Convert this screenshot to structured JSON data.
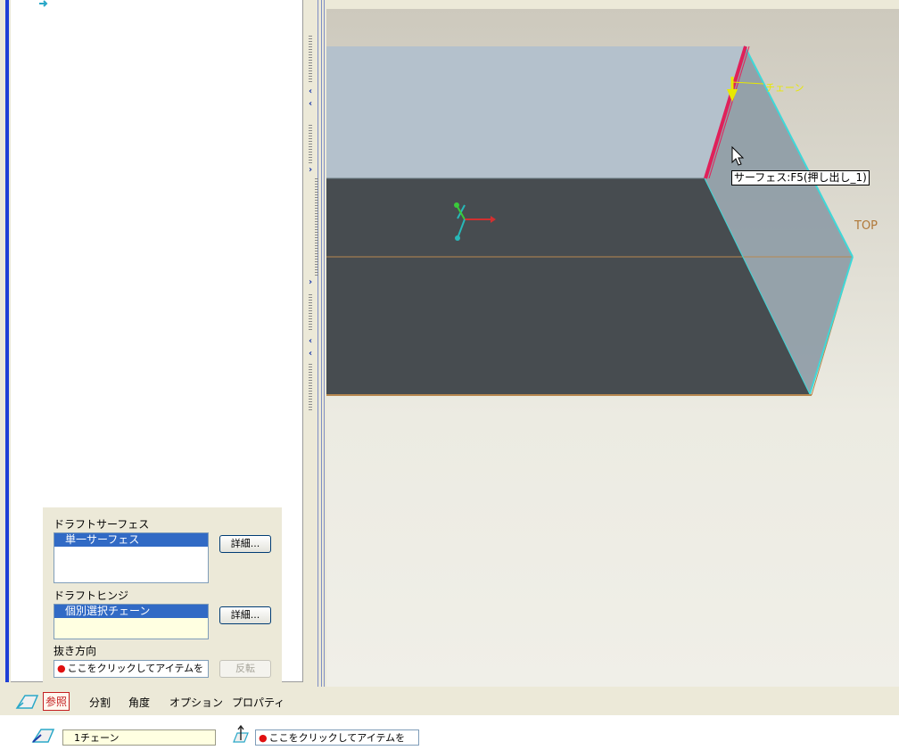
{
  "viewport": {
    "tooltip": "サーフェス:F5(押し出し_1)",
    "chain_label": "チェーン",
    "plane_label": "TOP"
  },
  "ref_panel": {
    "draft_surface_label": "ドラフトサーフェス",
    "draft_surface_item": "単一サーフェス",
    "draft_surface_detail": "詳細...",
    "draft_hinge_label": "ドラフトヒンジ",
    "draft_hinge_item": "個別選択チェーン",
    "draft_hinge_detail": "詳細...",
    "pull_direction_label": "抜き方向",
    "pull_direction_prompt": "ここをクリックしてアイテムを",
    "flip_button": "反転"
  },
  "tabs": [
    "参照",
    "分割",
    "角度",
    "オプション",
    "プロパティ"
  ],
  "dashboard": {
    "chain_value": "1チェーン",
    "direction_prompt": "ここをクリックしてアイテムを"
  },
  "colors": {
    "selection_blue": "#316ac5",
    "required_dot": "#e01010",
    "edge_highlight": "#e0205a",
    "chain_yellow": "#e8e800"
  }
}
